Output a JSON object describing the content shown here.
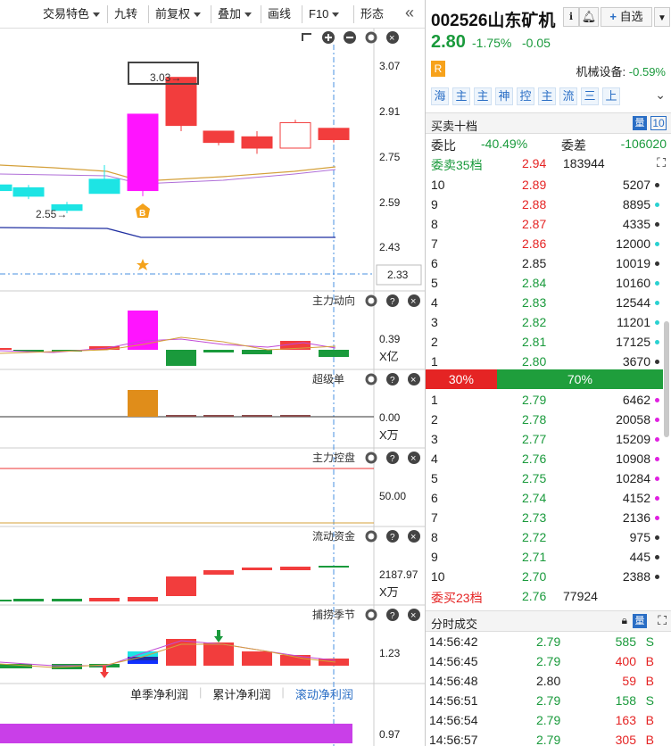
{
  "toolbar": {
    "items": [
      {
        "label": "交易特色",
        "dropdown": true
      },
      {
        "label": "九转",
        "dropdown": false
      },
      {
        "label": "前复权",
        "dropdown": true
      },
      {
        "label": "叠加",
        "dropdown": true
      },
      {
        "label": "画线",
        "dropdown": false
      },
      {
        "label": "F10",
        "dropdown": true
      },
      {
        "label": "形态",
        "dropdown": false
      }
    ],
    "collapse_icon": "double-chevron-left-icon"
  },
  "main_chart": {
    "y_ticks": [
      "3.07",
      "2.91",
      "2.75",
      "2.59",
      "2.43",
      "2.33"
    ],
    "high_label": "3.03→",
    "low_label": "2.55→",
    "b_marker": "B",
    "icons": [
      "refresh-icon",
      "zoom-in-icon",
      "zoom-out-icon",
      "gear-icon",
      "close-icon"
    ],
    "candles": [
      {
        "open": 2.63,
        "close": 2.65,
        "high": 2.66,
        "low": 2.62,
        "color": "cyan"
      },
      {
        "open": 2.64,
        "close": 2.61,
        "high": 2.65,
        "low": 2.6,
        "color": "cyan"
      },
      {
        "open": 2.56,
        "close": 2.58,
        "high": 2.59,
        "low": 2.55,
        "color": "cyan"
      },
      {
        "open": 2.62,
        "close": 2.67,
        "high": 2.72,
        "low": 2.62,
        "color": "cyan"
      },
      {
        "open": 2.63,
        "close": 2.9,
        "high": 2.9,
        "low": 2.61,
        "color": "magenta"
      },
      {
        "open": 2.86,
        "close": 3.03,
        "high": 3.03,
        "low": 2.84,
        "color": "red"
      },
      {
        "open": 2.8,
        "close": 2.84,
        "high": 2.84,
        "low": 2.79,
        "color": "red"
      },
      {
        "open": 2.78,
        "close": 2.82,
        "high": 2.84,
        "low": 2.76,
        "color": "red"
      },
      {
        "open": 2.78,
        "close": 2.87,
        "high": 2.88,
        "low": 2.78,
        "color": "hollow"
      },
      {
        "open": 2.81,
        "close": 2.85,
        "high": 2.85,
        "low": 2.8,
        "color": "red"
      }
    ]
  },
  "panes": [
    {
      "title": "主力动向",
      "value": "0.39",
      "unit": "X亿"
    },
    {
      "title": "超级单",
      "value": "0.00",
      "unit": "X万"
    },
    {
      "title": "主力控盘",
      "value": "50.00",
      "unit": ""
    },
    {
      "title": "流动资金",
      "value": "2187.97",
      "unit": "X万"
    },
    {
      "title": "捕捞季节",
      "value": "1.23",
      "unit": ""
    }
  ],
  "bottom_tabs": [
    "单季净利润",
    "累计净利润",
    "滚动净利润"
  ],
  "bottom_value": "0.97",
  "stock": {
    "code_name": "002526山东矿机",
    "price": "2.80",
    "change_pct": "-1.75%",
    "change": "-0.05",
    "add_label": "自选",
    "r_badge": "R",
    "sector": "机械设备:",
    "sector_chg": "-0.59%",
    "tags": [
      "海",
      "主",
      "主",
      "神",
      "控",
      "主",
      "流",
      "三",
      "上"
    ]
  },
  "orderbook": {
    "title": "买卖十档",
    "badge": "10",
    "weibi_label": "委比",
    "weibi": "-40.49%",
    "weicha_label": "委差",
    "weicha": "-106020",
    "sell_total_label": "委卖35档",
    "sell_total_price": "2.94",
    "sell_total_vol": "183944",
    "sells": [
      {
        "lvl": "10",
        "price": "2.89",
        "vol": "5207",
        "dot": "#333"
      },
      {
        "lvl": "9",
        "price": "2.88",
        "vol": "8895",
        "dot": "#2ad1d1"
      },
      {
        "lvl": "8",
        "price": "2.87",
        "vol": "4335",
        "dot": "#333"
      },
      {
        "lvl": "7",
        "price": "2.86",
        "vol": "12000",
        "dot": "#2ad1d1"
      },
      {
        "lvl": "6",
        "price": "2.85",
        "vol": "10019",
        "dot": "#333"
      },
      {
        "lvl": "5",
        "price": "2.84",
        "vol": "10160",
        "dot": "#2ad1d1"
      },
      {
        "lvl": "4",
        "price": "2.83",
        "vol": "12544",
        "dot": "#2ad1d1"
      },
      {
        "lvl": "3",
        "price": "2.82",
        "vol": "11201",
        "dot": "#2ad1d1"
      },
      {
        "lvl": "2",
        "price": "2.81",
        "vol": "17125",
        "dot": "#2ad1d1"
      },
      {
        "lvl": "1",
        "price": "2.80",
        "vol": "3670",
        "dot": "#333"
      }
    ],
    "buy_pct": "30%",
    "sell_pct": "70%",
    "buys": [
      {
        "lvl": "1",
        "price": "2.79",
        "vol": "6462",
        "dot": "#e020e0"
      },
      {
        "lvl": "2",
        "price": "2.78",
        "vol": "20058",
        "dot": "#e020e0"
      },
      {
        "lvl": "3",
        "price": "2.77",
        "vol": "15209",
        "dot": "#e020e0"
      },
      {
        "lvl": "4",
        "price": "2.76",
        "vol": "10908",
        "dot": "#e020e0"
      },
      {
        "lvl": "5",
        "price": "2.75",
        "vol": "10284",
        "dot": "#e020e0"
      },
      {
        "lvl": "6",
        "price": "2.74",
        "vol": "4152",
        "dot": "#e020e0"
      },
      {
        "lvl": "7",
        "price": "2.73",
        "vol": "2136",
        "dot": "#e020e0"
      },
      {
        "lvl": "8",
        "price": "2.72",
        "vol": "975",
        "dot": "#333"
      },
      {
        "lvl": "9",
        "price": "2.71",
        "vol": "445",
        "dot": "#333"
      },
      {
        "lvl": "10",
        "price": "2.70",
        "vol": "2388",
        "dot": "#333"
      }
    ],
    "buy_total_label": "委买23档",
    "buy_total_price": "2.76",
    "buy_total_vol": "77924"
  },
  "trades": {
    "title": "分时成交",
    "rows": [
      {
        "time": "14:56:42",
        "price": "2.79",
        "vol": "585",
        "side": "S"
      },
      {
        "time": "14:56:45",
        "price": "2.79",
        "vol": "400",
        "side": "B"
      },
      {
        "time": "14:56:48",
        "price": "2.80",
        "vol": "59",
        "side": "B"
      },
      {
        "time": "14:56:51",
        "price": "2.79",
        "vol": "158",
        "side": "S"
      },
      {
        "time": "14:56:54",
        "price": "2.79",
        "vol": "163",
        "side": "B"
      },
      {
        "time": "14:56:57",
        "price": "2.79",
        "vol": "305",
        "side": "B"
      }
    ]
  },
  "colors": {
    "up": "#f23d3d",
    "down": "#1a9a3c",
    "cyan": "#1de4e4",
    "magenta": "#ff14ff"
  }
}
